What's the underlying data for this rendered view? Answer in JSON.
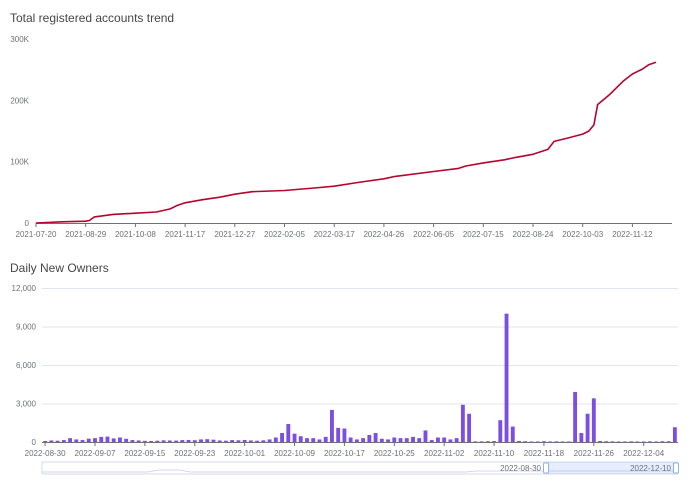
{
  "chart_data": [
    {
      "type": "line",
      "title": "Total registered accounts trend",
      "color": "#b5042f",
      "x_tick_labels": [
        "2021-07-20",
        "2021-08-29",
        "2021-10-08",
        "2021-11-17",
        "2021-12-27",
        "2022-02-05",
        "2022-03-17",
        "2022-04-26",
        "2022-06-05",
        "2022-07-15",
        "2022-08-24",
        "2022-10-03",
        "2022-11-12"
      ],
      "y_tick_labels": [
        "0",
        "100K",
        "200K",
        "300K"
      ],
      "ylim": [
        0,
        300000
      ],
      "grid": false,
      "x": [
        "2021-07-20",
        "2021-08-10",
        "2021-08-29",
        "2021-09-01",
        "2021-09-05",
        "2021-09-20",
        "2021-10-08",
        "2021-10-25",
        "2021-11-05",
        "2021-11-10",
        "2021-11-17",
        "2021-12-01",
        "2021-12-15",
        "2021-12-27",
        "2022-01-10",
        "2022-02-05",
        "2022-03-01",
        "2022-03-17",
        "2022-04-05",
        "2022-04-26",
        "2022-05-05",
        "2022-06-05",
        "2022-06-25",
        "2022-07-01",
        "2022-07-15",
        "2022-08-01",
        "2022-08-10",
        "2022-08-24",
        "2022-09-05",
        "2022-09-10",
        "2022-09-20",
        "2022-10-03",
        "2022-10-08",
        "2022-10-12",
        "2022-10-15",
        "2022-10-25",
        "2022-11-01",
        "2022-11-05",
        "2022-11-12",
        "2022-11-20",
        "2022-11-25",
        "2022-12-01"
      ],
      "values": [
        0,
        2000,
        3000,
        4000,
        10000,
        14000,
        16000,
        18000,
        23000,
        28000,
        33000,
        38000,
        42000,
        47000,
        51000,
        53000,
        57000,
        60000,
        66000,
        72000,
        76000,
        84000,
        89000,
        93000,
        98000,
        103000,
        107000,
        112000,
        120000,
        133000,
        138000,
        145000,
        150000,
        160000,
        193000,
        210000,
        224000,
        232000,
        243000,
        251000,
        258000,
        262000
      ]
    },
    {
      "type": "bar",
      "title": "Daily New Owners",
      "color": "#7b4ee4",
      "x_tick_labels": [
        "2022-08-30",
        "2022-09-07",
        "2022-09-15",
        "2022-09-23",
        "2022-10-01",
        "2022-10-09",
        "2022-10-17",
        "2022-10-25",
        "2022-11-02",
        "2022-11-10",
        "2022-11-18",
        "2022-11-26",
        "2022-12-04"
      ],
      "y_tick_labels": [
        "0",
        "3,000",
        "6,000",
        "9,000",
        "12,000"
      ],
      "ylim": [
        0,
        12000
      ],
      "grid": true,
      "start_date": "2022-08-30",
      "values": [
        80,
        120,
        100,
        150,
        300,
        200,
        150,
        260,
        300,
        400,
        420,
        280,
        350,
        250,
        150,
        120,
        90,
        80,
        100,
        130,
        120,
        110,
        150,
        160,
        140,
        200,
        220,
        180,
        120,
        100,
        150,
        130,
        160,
        120,
        100,
        130,
        200,
        350,
        700,
        1400,
        650,
        450,
        300,
        300,
        200,
        400,
        2500,
        1100,
        1050,
        350,
        200,
        300,
        550,
        700,
        250,
        200,
        350,
        300,
        300,
        400,
        300,
        900,
        150,
        350,
        350,
        200,
        300,
        2900,
        2200,
        50,
        50,
        60,
        70,
        1700,
        10000,
        1200,
        80,
        60,
        40,
        40,
        60,
        40,
        50,
        40,
        40,
        3900,
        700,
        2200,
        3400,
        80,
        60,
        50,
        40,
        40,
        50,
        40,
        40,
        50,
        40,
        60,
        60,
        1150
      ],
      "zoom": {
        "start_label": "2022-08-30",
        "end_label": "2022-12-10"
      }
    }
  ]
}
